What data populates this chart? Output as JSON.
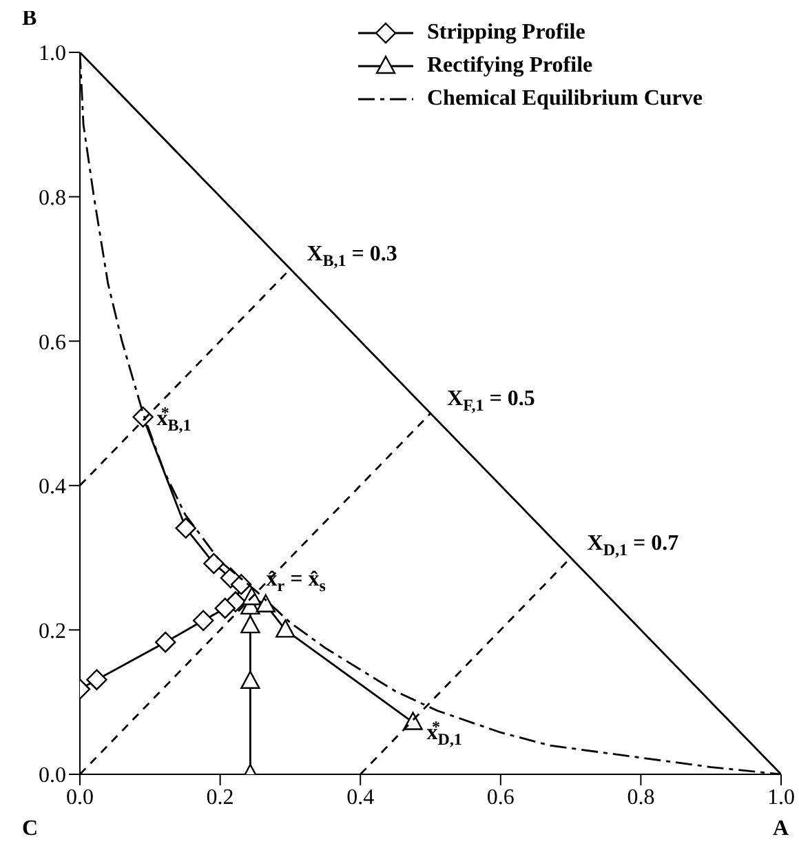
{
  "chart_data": {
    "type": "line",
    "xlim": [
      0,
      1
    ],
    "ylim": [
      0,
      1
    ],
    "xticks": [
      {
        "value": 0,
        "label": "0.0"
      },
      {
        "value": 0.2,
        "label": "0.2"
      },
      {
        "value": 0.4,
        "label": "0.4"
      },
      {
        "value": 0.6,
        "label": "0.6"
      },
      {
        "value": 0.8,
        "label": "0.8"
      },
      {
        "value": 1,
        "label": "1.0"
      }
    ],
    "yticks": [
      {
        "value": 0,
        "label": "0.0"
      },
      {
        "value": 0.2,
        "label": "0.2"
      },
      {
        "value": 0.4,
        "label": "0.4"
      },
      {
        "value": 0.6,
        "label": "0.6"
      },
      {
        "value": 0.8,
        "label": "0.8"
      },
      {
        "value": 1,
        "label": "1.0"
      }
    ],
    "legend": "top right",
    "series": [
      {
        "name": "Stripping Profile",
        "color": "#000000",
        "marker": "diamond",
        "line_style": "solid",
        "x": [
          0.09,
          0.151,
          0.191,
          0.215,
          0.23,
          0.222,
          0.207,
          0.176,
          0.122,
          0.024,
          0
        ],
        "values": [
          0.495,
          0.341,
          0.292,
          0.272,
          0.263,
          0.239,
          0.23,
          0.213,
          0.183,
          0.131,
          0.118
        ]
      },
      {
        "name": "Rectifying Profile",
        "color": "#000000",
        "marker": "triangle",
        "line_style": "solid",
        "x": [
          0.243,
          0.243,
          0.243,
          0.243,
          0.245,
          0.265,
          0.293,
          0.475
        ],
        "values": [
          0,
          0.129,
          0.206,
          0.232,
          0.245,
          0.235,
          0.2,
          0.072
        ]
      },
      {
        "name": "Chemical Equilibrium Curve",
        "color": "#000000",
        "marker": "none",
        "line_style": "dashdot",
        "x": [
          0,
          0.005,
          0.02,
          0.04,
          0.06,
          0.09,
          0.12,
          0.15,
          0.2,
          0.25,
          0.3,
          0.35,
          0.4,
          0.45,
          0.51,
          0.6,
          0.67,
          0.8,
          0.9,
          1
        ],
        "values": [
          1,
          0.9,
          0.8,
          0.68,
          0.6,
          0.5,
          0.42,
          0.36,
          0.295,
          0.255,
          0.21,
          0.175,
          0.145,
          0.115,
          0.088,
          0.058,
          0.04,
          0.023,
          0.01,
          0
        ]
      },
      {
        "color": "#000000",
        "marker": "none",
        "line_style": "solid",
        "x": [
          0,
          1
        ],
        "values": [
          1,
          0
        ]
      },
      {
        "color": "#000000",
        "marker": "none",
        "line_style": "dashed",
        "x": [
          0,
          0.3
        ],
        "values": [
          0.4,
          0.7
        ]
      },
      {
        "color": "#000000",
        "marker": "none",
        "line_style": "dashed",
        "x": [
          0,
          0.5
        ],
        "values": [
          0,
          0.5
        ]
      },
      {
        "color": "#000000",
        "marker": "none",
        "line_style": "dashed",
        "x": [
          0.4,
          0.7
        ],
        "values": [
          0,
          0.3
        ]
      }
    ],
    "annotations": [
      {
        "text": "X$_{B,1}$ = 0.3",
        "x": 0.3,
        "y": 0.7
      },
      {
        "text": "X$_{F,1}$ = 0.5",
        "x": 0.5,
        "y": 0.5
      },
      {
        "text": "X$_{D,1}$ = 0.7",
        "x": 0.7,
        "y": 0.3
      },
      {
        "text": "x$_{B,1}$$^{*}$",
        "x": 0.09,
        "y": 0.495
      },
      {
        "text": "x̂$_{r}$ = x̂$_{s}$",
        "x": 0.25,
        "y": 0.25
      },
      {
        "text": "x$_{D,1}$$^{*}$",
        "x": 0.475,
        "y": 0.072
      },
      {
        "text": "B",
        "x": 0,
        "y": 1
      },
      {
        "text": "C",
        "x": 0,
        "y": 0
      },
      {
        "text": "A",
        "x": 1,
        "y": 0
      }
    ]
  }
}
